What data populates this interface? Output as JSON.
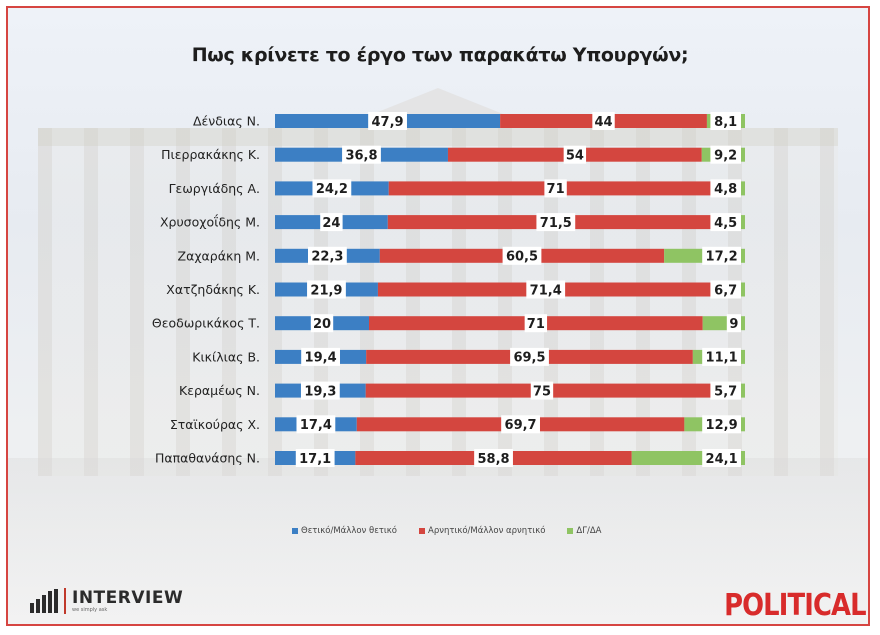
{
  "chart_data": {
    "type": "bar",
    "stacked": true,
    "orientation": "horizontal",
    "title": "Πως κρίνετε το έργο των παρακάτω Υπουργών;",
    "categories": [
      "Δένδιας Ν.",
      "Πιερρακάκης Κ.",
      "Γεωργιάδης Α.",
      "Χρυσοχοΐδης Μ.",
      "Ζαχαράκη Μ.",
      "Χατζηδάκης Κ.",
      "Θεοδωρικάκος Τ.",
      "Κικίλιας Β.",
      "Κεραμέως Ν.",
      "Σταϊκούρας Χ.",
      "Παπαθανάσης Ν."
    ],
    "series": [
      {
        "name": "Θετικό/Μάλλον θετικό",
        "color": "#3c7fc4",
        "values": [
          47.9,
          36.8,
          24.2,
          24,
          22.3,
          21.9,
          20,
          19.4,
          19.3,
          17.4,
          17.1
        ]
      },
      {
        "name": "Αρνητικό/Μάλλον αρνητικό",
        "color": "#d4463f",
        "values": [
          44,
          54,
          71,
          71.5,
          60.5,
          71.4,
          71,
          69.5,
          75,
          69.7,
          58.8
        ]
      },
      {
        "name": "ΔΓ/ΔΑ",
        "color": "#8fc463",
        "values": [
          8.1,
          9.2,
          4.8,
          4.5,
          17.2,
          6.7,
          9,
          11.1,
          5.7,
          12.9,
          24.1
        ]
      }
    ],
    "value_labels": [
      [
        "47,9",
        "44",
        "8,1"
      ],
      [
        "36,8",
        "54",
        "9,2"
      ],
      [
        "24,2",
        "71",
        "4,8"
      ],
      [
        "24",
        "71,5",
        "4,5"
      ],
      [
        "22,3",
        "60,5",
        "17,2"
      ],
      [
        "21,9",
        "71,4",
        "6,7"
      ],
      [
        "20",
        "71",
        "9"
      ],
      [
        "19,4",
        "69,5",
        "11,1"
      ],
      [
        "19,3",
        "75",
        "5,7"
      ],
      [
        "17,4",
        "69,7",
        "12,9"
      ],
      [
        "17,1",
        "58,8",
        "24,1"
      ]
    ],
    "legend_position": "bottom",
    "grid": false
  },
  "legend": {
    "positive": "Θετικό/Μάλλον θετικό",
    "negative": "Αρνητικό/Μάλλον αρνητικό",
    "dkna": "ΔΓ/ΔΑ"
  },
  "logos": {
    "interview": "INTERVIEW",
    "interview_sub": "we simply ask",
    "political": "POLITICAL"
  }
}
